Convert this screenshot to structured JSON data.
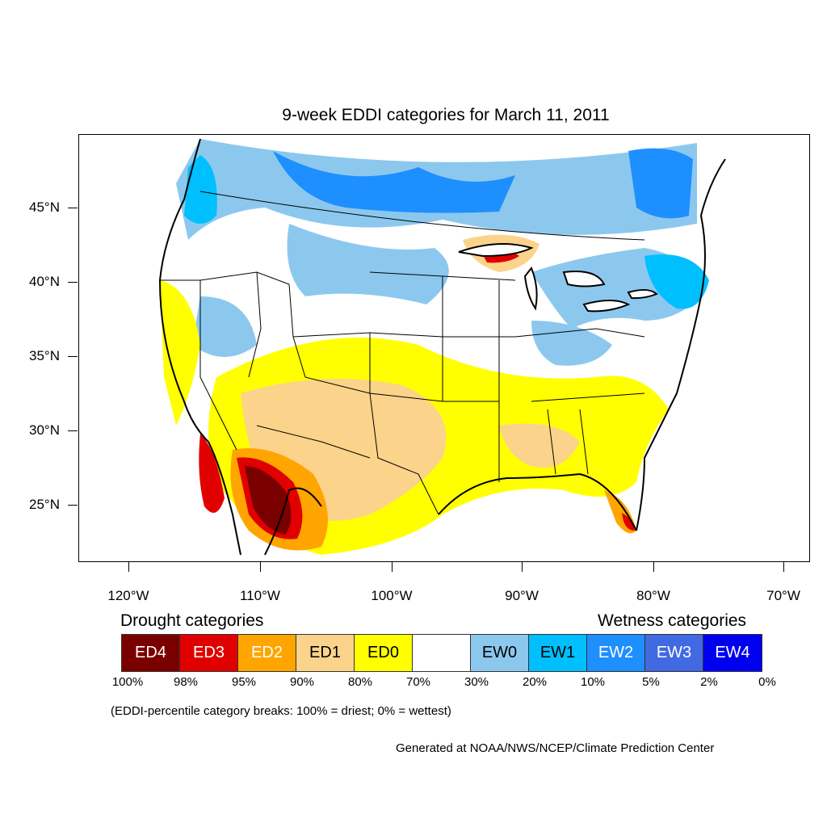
{
  "title": "9-week EDDI categories for March 11, 2011",
  "axes": {
    "lat_labels": [
      "45°N",
      "40°N",
      "35°N",
      "30°N",
      "25°N"
    ],
    "lon_labels": [
      "120°W",
      "110°W",
      "100°W",
      "90°W",
      "80°W",
      "70°W"
    ]
  },
  "legend": {
    "drought_label": "Drought categories",
    "wetness_label": "Wetness categories",
    "categories": [
      {
        "label": "ED4",
        "color": "#7a0000",
        "text_color": "#ffffff"
      },
      {
        "label": "ED3",
        "color": "#e00000",
        "text_color": "#ffffff"
      },
      {
        "label": "ED2",
        "color": "#ffa500",
        "text_color": "#ffffff"
      },
      {
        "label": "ED1",
        "color": "#fcd38a",
        "text_color": "#000000"
      },
      {
        "label": "ED0",
        "color": "#ffff00",
        "text_color": "#000000"
      },
      {
        "label": "",
        "color": "#ffffff",
        "text_color": "#000000"
      },
      {
        "label": "EW0",
        "color": "#8cc8ee",
        "text_color": "#000000"
      },
      {
        "label": "EW1",
        "color": "#00bfff",
        "text_color": "#000000"
      },
      {
        "label": "EW2",
        "color": "#1e8fff",
        "text_color": "#ffffff"
      },
      {
        "label": "EW3",
        "color": "#4169e1",
        "text_color": "#ffffff"
      },
      {
        "label": "EW4",
        "color": "#0000f0",
        "text_color": "#ffffff"
      }
    ],
    "breaks": [
      "100%",
      "98%",
      "95%",
      "90%",
      "80%",
      "70%",
      "30%",
      "20%",
      "10%",
      "5%",
      "2%",
      "0%"
    ]
  },
  "note": "(EDDI-percentile category breaks: 100% = driest; 0% = wettest)",
  "credit": "Generated at NOAA/NWS/NCEP/Climate Prediction Center"
}
